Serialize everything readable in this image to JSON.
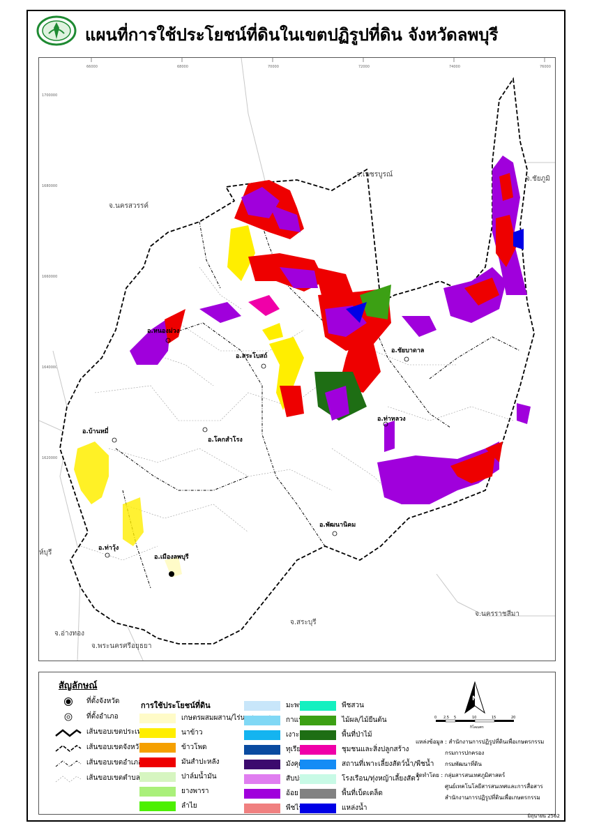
{
  "title": "แผนที่การใช้ประโยชน์ที่ดินในเขตปฏิรูปที่ดิน จังหวัดลพบุรี",
  "map": {
    "provinces": [
      {
        "key": "nakhon_sawan",
        "label": "จ.นครสวรรค์"
      },
      {
        "key": "phetchabun",
        "label": "จ.เพชรบูรณ์"
      },
      {
        "key": "chaiyaphum",
        "label": "จ.ชัยภูมิ"
      },
      {
        "key": "sing_buri",
        "label": "จ.สิงห์บุรี"
      },
      {
        "key": "ang_thong",
        "label": "จ.อ่างทอง"
      },
      {
        "key": "ayutthaya",
        "label": "จ.พระนครศรีอยุธยา"
      },
      {
        "key": "saraburi",
        "label": "จ.สระบุรี"
      },
      {
        "key": "nakhon_ratchasima",
        "label": "จ.นครราชสีมา"
      }
    ],
    "districts": [
      {
        "key": "sa_bot",
        "label": "อ.สระโบสถ์"
      },
      {
        "key": "chai_badan",
        "label": "อ.ชัยบาดาล"
      },
      {
        "key": "ban_mi",
        "label": "อ.บ้านหมี่"
      },
      {
        "key": "khok_samrong",
        "label": "อ.โคกสำโรง"
      },
      {
        "key": "tha_luang",
        "label": "อ.ท่าหลวง"
      },
      {
        "key": "tha_wung",
        "label": "อ.ท่าวุ้ง"
      },
      {
        "key": "mueang",
        "label": "อ.เมืองลพบุรี"
      },
      {
        "key": "phatthana_nikhom",
        "label": "อ.พัฒนานิคม"
      },
      {
        "key": "nong_muang",
        "label": "อ.หนองม่วง"
      }
    ],
    "grid_top": [
      "66000",
      "68000",
      "70000",
      "72000",
      "74000",
      "76000"
    ],
    "grid_side": [
      "1700000",
      "1680000",
      "1660000",
      "1640000",
      "1620000"
    ]
  },
  "legend": {
    "title": "สัญลักษณ์",
    "symbols": [
      {
        "key": "prov_center",
        "label": "ที่ตั้งจังหวัด"
      },
      {
        "key": "dist_center",
        "label": "ที่ตั้งอำเภอ"
      },
      {
        "key": "country",
        "label": "เส้นขอบเขตประเทศ"
      },
      {
        "key": "province",
        "label": "เส้นขอบเขตจังหวัด"
      },
      {
        "key": "district",
        "label": "เส้นขอบเขตอำเภอ"
      },
      {
        "key": "subdistrict",
        "label": "เส้นขอบเขตตำบล"
      }
    ],
    "landuse_title": "การใช้ประโยชน์ที่ดิน",
    "landuse": [
      {
        "label": "เกษตรผสมผสาน/ไร่นาสวนผสม",
        "color": "#fffbc8"
      },
      {
        "label": "นาข้าว",
        "color": "#ffee00"
      },
      {
        "label": "ข้าวโพด",
        "color": "#f5a000"
      },
      {
        "label": "มันสำปะหลัง",
        "color": "#ee0000"
      },
      {
        "label": "ปาล์มน้ำมัน",
        "color": "#d6f5c0"
      },
      {
        "label": "ยางพารา",
        "color": "#aaf07a"
      },
      {
        "label": "ลำไย",
        "color": "#4cf000"
      },
      {
        "label": "มะพร้าว",
        "color": "#c8e6fa"
      },
      {
        "label": "กาแฟ",
        "color": "#80d8f5"
      },
      {
        "label": "เงาะ",
        "color": "#14b4f0"
      },
      {
        "label": "ทุเรียน",
        "color": "#0a4ba0"
      },
      {
        "label": "มังคุด",
        "color": "#3c0a6e"
      },
      {
        "label": "สับปะรด",
        "color": "#e07ef0"
      },
      {
        "label": "อ้อย",
        "color": "#a000dc"
      },
      {
        "label": "พืชไร่",
        "color": "#f08080"
      },
      {
        "label": "พืชสวน",
        "color": "#14f0c0"
      },
      {
        "label": "ไม้ผล/ไม้ยืนต้น",
        "color": "#3ca014"
      },
      {
        "label": "พื้นที่ป่าไม้",
        "color": "#1e6e14"
      },
      {
        "label": "ชุมชนและสิ่งปลูกสร้าง",
        "color": "#f000a8"
      },
      {
        "label": "สถานที่เพาะเลี้ยงสัตว์น้ำ/พืชน้ำ",
        "color": "#148cf5"
      },
      {
        "label": "โรงเรือน/ทุ่งหญ้าเลี้ยงสัตว์",
        "color": "#c8fae6"
      },
      {
        "label": "พื้นที่เบ็ดเตล็ด",
        "color": "#828282"
      },
      {
        "label": "แหล่งน้ำ",
        "color": "#0000e6"
      }
    ],
    "scale_ticks": [
      "0",
      "2.5",
      "5",
      "10",
      "15",
      "20"
    ],
    "scale_unit": "กิโลเมตร",
    "source_label": "แหล่งข้อมูล :",
    "source_lines": [
      "สำนักงานการปฏิรูปที่ดินเพื่อเกษตรกรรม",
      "กรมการปกครอง",
      "กรมพัฒนาที่ดิน"
    ],
    "prepared_label": "จัดทำโดย :",
    "prepared_lines": [
      "กลุ่มสารสนเทศภูมิศาสตร์",
      "ศูนย์เทคโนโลยีสารสนเทศและการสื่อสาร",
      "สำนักงานการปฏิรูปที่ดินเพื่อเกษตรกรรม"
    ]
  },
  "date": "มิถุนายน 2562"
}
